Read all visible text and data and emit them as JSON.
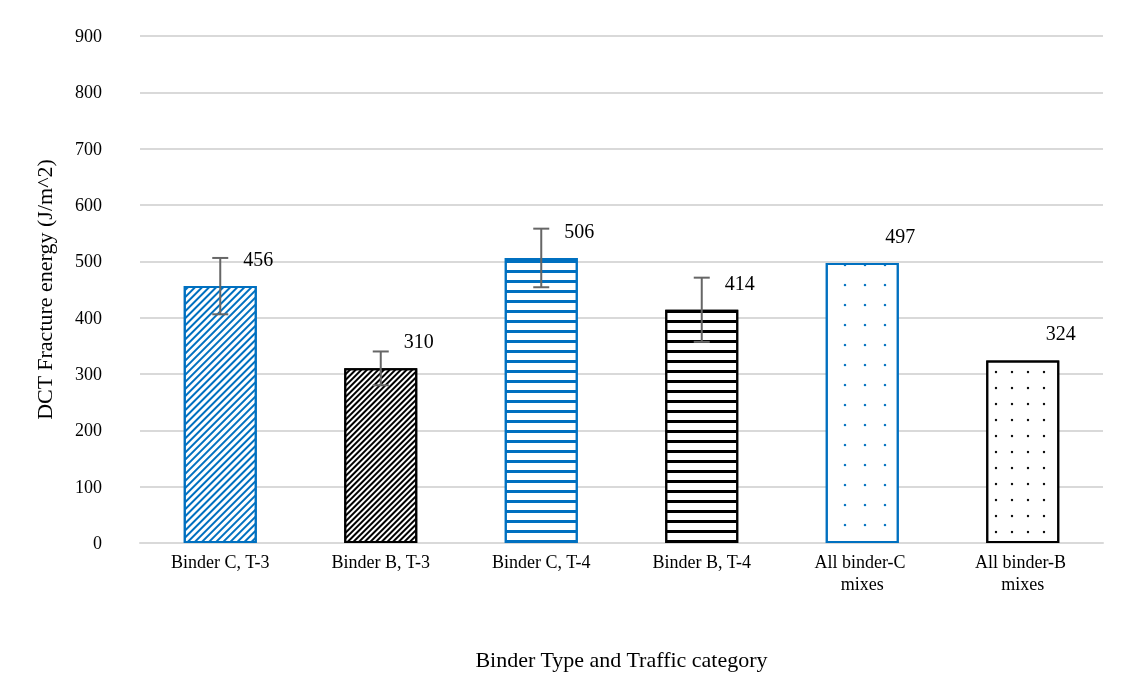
{
  "chart_data": {
    "type": "bar",
    "xlabel": "Binder Type and Traffic category",
    "ylabel": "DCT Fracture energy (J/m^2)",
    "categories": [
      "Binder C, T-3",
      "Binder B, T-3",
      "Binder C, T-4",
      "Binder B, T-4",
      "All binder-C mixes",
      "All binder-B mixes"
    ],
    "values": [
      456,
      310,
      506,
      414,
      497,
      324
    ],
    "colors": [
      "#0070c0",
      "#000000",
      "#0070c0",
      "#000000",
      "#0070c0",
      "#000000"
    ],
    "errors": [
      50,
      30,
      52,
      57,
      null,
      null
    ],
    "data_labels": true,
    "ylim": [
      0,
      900
    ],
    "yticks": [
      0,
      100,
      200,
      300,
      400,
      500,
      600,
      700,
      800,
      900
    ],
    "grid": "y"
  }
}
